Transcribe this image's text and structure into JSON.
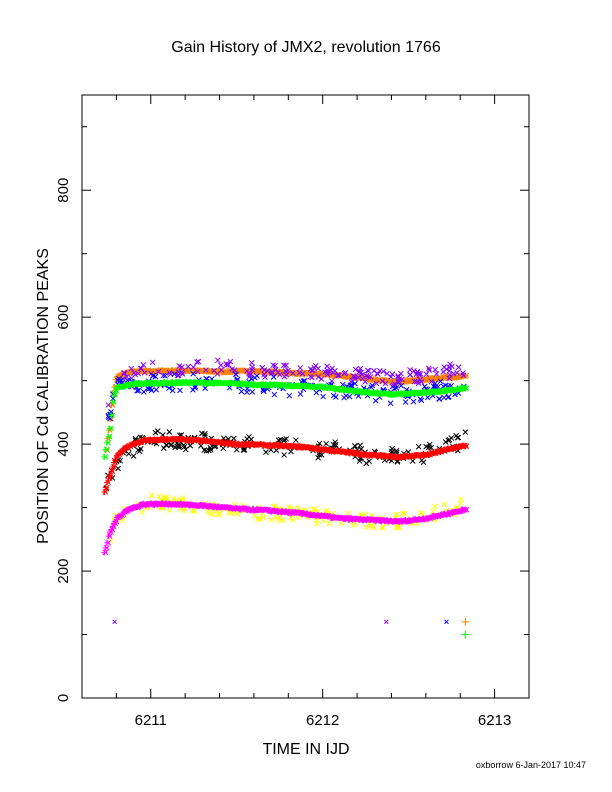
{
  "chart_data": {
    "type": "scatter",
    "title": "Gain History of JMX2, revolution 1766",
    "xlabel": "TIME IN IJD",
    "ylabel": "POSITION OF Cd CALIBRATION PEAKS",
    "xlim": [
      6210.6,
      6213.2
    ],
    "ylim": [
      0,
      950
    ],
    "x_ticks": [
      6211,
      6212,
      6213
    ],
    "y_ticks": [
      0,
      200,
      400,
      600,
      800
    ],
    "grid": false,
    "footer": "oxborrow  6-Jan-2017 10:47",
    "series": [
      {
        "color": "#ff8000",
        "marker": "dense",
        "points": [
          [
            6210.74,
            392
          ],
          [
            6210.76,
            430
          ],
          [
            6210.78,
            480
          ],
          [
            6210.8,
            505
          ],
          [
            6210.85,
            512
          ],
          [
            6210.9,
            514
          ],
          [
            6211.0,
            515
          ],
          [
            6211.2,
            516
          ],
          [
            6211.4,
            514
          ],
          [
            6211.6,
            515
          ],
          [
            6211.8,
            512
          ],
          [
            6212.0,
            510
          ],
          [
            6212.2,
            505
          ],
          [
            6212.4,
            498
          ],
          [
            6212.6,
            502
          ],
          [
            6212.7,
            505
          ],
          [
            6212.83,
            507
          ]
        ]
      },
      {
        "color": "#8000ff",
        "marker": "x",
        "scatter": 12,
        "points": [
          [
            6210.75,
            450
          ],
          [
            6210.8,
            505
          ],
          [
            6210.9,
            515
          ],
          [
            6211.0,
            518
          ],
          [
            6211.2,
            520
          ],
          [
            6211.4,
            522
          ],
          [
            6211.6,
            518
          ],
          [
            6211.8,
            515
          ],
          [
            6212.0,
            512
          ],
          [
            6212.2,
            508
          ],
          [
            6212.4,
            502
          ],
          [
            6212.6,
            508
          ],
          [
            6212.7,
            512
          ],
          [
            6212.83,
            520
          ]
        ]
      },
      {
        "color": "#0000ff",
        "marker": "x",
        "scatter": 14,
        "points": [
          [
            6210.75,
            440
          ],
          [
            6210.8,
            490
          ],
          [
            6210.9,
            495
          ],
          [
            6211.2,
            498
          ],
          [
            6211.4,
            498
          ],
          [
            6211.6,
            495
          ],
          [
            6211.8,
            490
          ],
          [
            6212.0,
            488
          ],
          [
            6212.2,
            482
          ],
          [
            6212.4,
            478
          ],
          [
            6212.6,
            482
          ],
          [
            6212.83,
            490
          ]
        ]
      },
      {
        "color": "#00ff00",
        "marker": "dense",
        "points": [
          [
            6210.73,
            380
          ],
          [
            6210.76,
            420
          ],
          [
            6210.78,
            470
          ],
          [
            6210.8,
            488
          ],
          [
            6210.9,
            495
          ],
          [
            6211.0,
            496
          ],
          [
            6211.2,
            497
          ],
          [
            6211.4,
            496
          ],
          [
            6211.6,
            494
          ],
          [
            6211.8,
            492
          ],
          [
            6212.0,
            490
          ],
          [
            6212.2,
            483
          ],
          [
            6212.4,
            478
          ],
          [
            6212.6,
            481
          ],
          [
            6212.7,
            484
          ],
          [
            6212.83,
            488
          ]
        ]
      },
      {
        "color": "#000000",
        "marker": "x",
        "scatter": 14,
        "points": [
          [
            6210.74,
            330
          ],
          [
            6210.8,
            370
          ],
          [
            6210.9,
            395
          ],
          [
            6211.0,
            408
          ],
          [
            6211.2,
            405
          ],
          [
            6211.4,
            402
          ],
          [
            6211.6,
            398
          ],
          [
            6211.8,
            395
          ],
          [
            6212.0,
            392
          ],
          [
            6212.2,
            385
          ],
          [
            6212.4,
            380
          ],
          [
            6212.6,
            385
          ],
          [
            6212.7,
            392
          ],
          [
            6212.83,
            405
          ]
        ]
      },
      {
        "color": "#ff0000",
        "marker": "dense",
        "points": [
          [
            6210.73,
            325
          ],
          [
            6210.76,
            350
          ],
          [
            6210.8,
            380
          ],
          [
            6210.85,
            395
          ],
          [
            6210.95,
            405
          ],
          [
            6211.1,
            408
          ],
          [
            6211.3,
            405
          ],
          [
            6211.5,
            400
          ],
          [
            6211.7,
            398
          ],
          [
            6211.9,
            395
          ],
          [
            6212.1,
            388
          ],
          [
            6212.3,
            382
          ],
          [
            6212.45,
            380
          ],
          [
            6212.6,
            383
          ],
          [
            6212.75,
            393
          ],
          [
            6212.83,
            398
          ]
        ]
      },
      {
        "color": "#ffff00",
        "marker": "x",
        "scatter": 12,
        "points": [
          [
            6210.75,
            240
          ],
          [
            6210.8,
            285
          ],
          [
            6210.9,
            300
          ],
          [
            6211.0,
            310
          ],
          [
            6211.2,
            305
          ],
          [
            6211.4,
            298
          ],
          [
            6211.6,
            292
          ],
          [
            6211.8,
            290
          ],
          [
            6212.0,
            285
          ],
          [
            6212.2,
            280
          ],
          [
            6212.4,
            278
          ],
          [
            6212.6,
            285
          ],
          [
            6212.7,
            295
          ],
          [
            6212.83,
            305
          ]
        ]
      },
      {
        "color": "#ff00ff",
        "marker": "dense",
        "points": [
          [
            6210.73,
            228
          ],
          [
            6210.76,
            260
          ],
          [
            6210.8,
            282
          ],
          [
            6210.85,
            295
          ],
          [
            6210.95,
            305
          ],
          [
            6211.1,
            306
          ],
          [
            6211.3,
            303
          ],
          [
            6211.5,
            298
          ],
          [
            6211.7,
            295
          ],
          [
            6211.9,
            290
          ],
          [
            6212.1,
            283
          ],
          [
            6212.3,
            280
          ],
          [
            6212.45,
            278
          ],
          [
            6212.6,
            283
          ],
          [
            6212.75,
            292
          ],
          [
            6212.83,
            297
          ]
        ]
      }
    ],
    "outliers": [
      {
        "x": 6210.79,
        "y": 120,
        "marker": "x",
        "color": "#8000ff"
      },
      {
        "x": 6212.37,
        "y": 120,
        "marker": "x",
        "color": "#8000ff"
      },
      {
        "x": 6212.72,
        "y": 120,
        "marker": "x",
        "color": "#0000ff"
      },
      {
        "x": 6212.83,
        "y": 120,
        "marker": "+",
        "color": "#ff8000"
      },
      {
        "x": 6212.83,
        "y": 100,
        "marker": "+",
        "color": "#00ff00"
      }
    ]
  }
}
